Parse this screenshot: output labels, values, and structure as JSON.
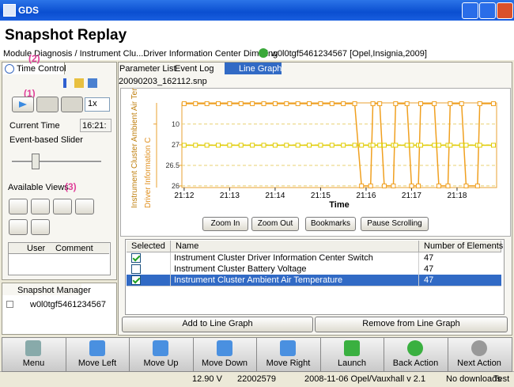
{
  "window": {
    "title": "GDS"
  },
  "header": {
    "title": "Snapshot Replay",
    "breadcrumb": "Module Diagnosis / Instrument Clu...Driver Information Center Dimming",
    "vehicle": "w0l0tgf5461234567 [Opel,Insignia,2009]"
  },
  "left_panel": {
    "tab": "Time Control",
    "annotations": [
      "(2)",
      "(1)",
      "(3)"
    ],
    "speed": "1x",
    "current_time_label": "Current Time",
    "current_time": "16:21:",
    "slider_label": "Event-based Slider",
    "views_label": "Available Views",
    "user_table": {
      "columns": [
        "User",
        "Comment"
      ]
    }
  },
  "snapshot_manager": {
    "title": "Snapshot Manager",
    "item": "w0l0tgf5461234567"
  },
  "tabs": [
    "Parameter List",
    "Event Log",
    "Line Graph"
  ],
  "file": "20090203_162112.snp",
  "chart_data": {
    "type": "line",
    "y_label": "Instrument Cluster Ambient Air Tem",
    "y2_label": "Driver Information C",
    "x_label": "Time",
    "x": [
      0,
      0.25,
      0.5,
      0.75,
      1,
      1.25,
      1.5,
      1.75,
      2,
      2.25,
      2.5,
      2.75,
      3,
      3.25,
      3.5,
      3.75,
      3.9,
      4.1,
      4.15,
      4.3,
      4.4,
      4.6,
      4.65,
      4.9,
      5,
      5.15,
      5.2,
      5.5,
      5.6,
      5.8,
      5.85,
      6.1,
      6.2,
      6.45,
      6.5,
      6.8
    ],
    "xlim": [
      -0.05,
      6.87
    ],
    "xticks": [
      {
        "value": 0,
        "label": "21:12"
      },
      {
        "value": 1,
        "label": "21:13"
      },
      {
        "value": 2,
        "label": "21:14"
      },
      {
        "value": 3,
        "label": "21:15"
      },
      {
        "value": 4,
        "label": "21:16"
      },
      {
        "value": 5,
        "label": "21:17"
      },
      {
        "value": 6,
        "label": "21:18"
      }
    ],
    "ylim": [
      25.96,
      28.02
    ],
    "yticks": [
      26,
      26.5,
      27
    ],
    "y2lim": [
      7,
      11
    ],
    "y2ticks": [
      10
    ],
    "grid": true,
    "series": [
      {
        "color": "#f0a020",
        "values": [
          28,
          28,
          28,
          28,
          28,
          28,
          28,
          28,
          28,
          28,
          28,
          28,
          28,
          28,
          28,
          28,
          26,
          26,
          28,
          28,
          26,
          26,
          28,
          28,
          26,
          26,
          28,
          28,
          26,
          26,
          28,
          28,
          26,
          26,
          28,
          28
        ]
      },
      {
        "color": "#e0cc00",
        "axis": "y2",
        "values": [
          9,
          9,
          9,
          9,
          9,
          9,
          9,
          9,
          9,
          9,
          9,
          9,
          9,
          9,
          9,
          9,
          9,
          9,
          9,
          9,
          9,
          9,
          9,
          9,
          9,
          9,
          9,
          9,
          9,
          9,
          9,
          9,
          9,
          9,
          9,
          9
        ]
      }
    ]
  },
  "graph_buttons": [
    "Zoom In",
    "Zoom Out",
    "Bookmarks",
    "Pause Scrolling"
  ],
  "table": {
    "columns": [
      "Selected",
      "Name",
      "Number of Elements"
    ],
    "rows": [
      {
        "selected": true,
        "name": "Instrument Cluster Driver Information Center Switch",
        "count": 47
      },
      {
        "selected": false,
        "name": "Instrument Cluster Battery Voltage",
        "count": 47
      },
      {
        "selected": true,
        "name": "Instrument Cluster Ambient Air Temperature",
        "count": 47
      }
    ]
  },
  "table_buttons": [
    "Add to Line Graph",
    "Remove from Line Graph"
  ],
  "toolbar": [
    "Menu",
    "Move Left",
    "Move Up",
    "Move Down",
    "Move Right",
    "Launch",
    "Back Action",
    "Next Action"
  ],
  "status": [
    "12.90 V",
    "22002579",
    "2008-11-06 Opel/Vauxhall v 2.1",
    "No downloads",
    "Test"
  ]
}
